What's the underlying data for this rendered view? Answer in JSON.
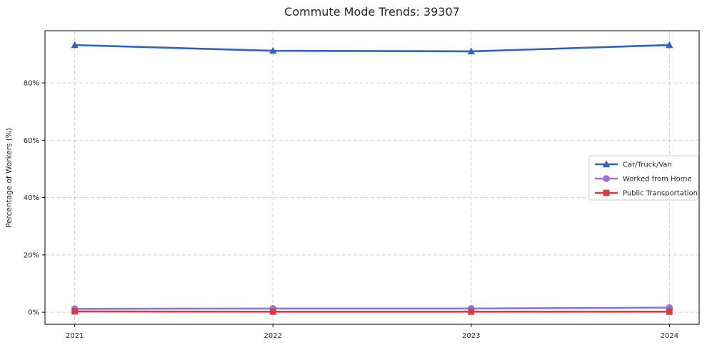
{
  "chart_data": {
    "type": "line",
    "title": "Commute Mode Trends: 39307",
    "xlabel": "",
    "ylabel": "Percentage of Workers (%)",
    "x": [
      2021,
      2022,
      2023,
      2024
    ],
    "x_tick_labels": [
      "2021",
      "2022",
      "2023",
      "2024"
    ],
    "y_ticks": [
      0,
      20,
      40,
      60,
      80
    ],
    "y_tick_labels": [
      "0%",
      "20%",
      "40%",
      "60%",
      "80%"
    ],
    "xlim": [
      2020.85,
      2024.15
    ],
    "ylim": [
      -4.2,
      98.2
    ],
    "grid": true,
    "grid_style": "dashed",
    "grid_color": "#cbcbcb",
    "legend_position": "center-right",
    "series": [
      {
        "name": "Car/Truck/Van",
        "marker": "triangle",
        "color": "#2e63c4",
        "values": [
          93.2,
          91.2,
          91.0,
          93.2
        ]
      },
      {
        "name": "Worked from Home",
        "marker": "circle",
        "color": "#9370db",
        "values": [
          1.2,
          1.3,
          1.3,
          1.6
        ]
      },
      {
        "name": "Public Transportation",
        "marker": "square",
        "color": "#d93b3b",
        "values": [
          0.3,
          0.2,
          0.2,
          0.2
        ]
      }
    ]
  }
}
